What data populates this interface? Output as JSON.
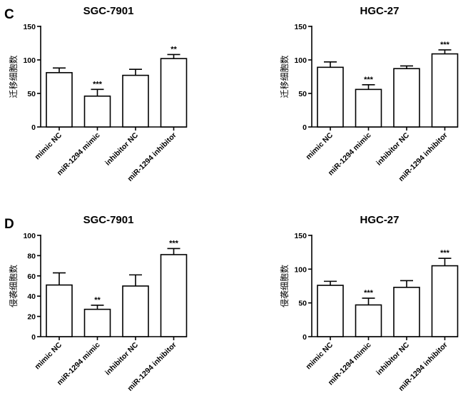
{
  "panels": [
    "C",
    "D"
  ],
  "chart_data": [
    {
      "type": "bar",
      "panel": "C",
      "title": "SGC-7901",
      "ylabel": "迁移细胞数",
      "ylim": [
        0,
        150
      ],
      "yticks": [
        "0",
        "50",
        "100",
        "150"
      ],
      "categories": [
        "mimic NC",
        "miR-1294 mimic",
        "inhibitor NC",
        "miR-1294 inhibitor"
      ],
      "values": [
        81,
        46,
        77,
        102
      ],
      "errors": [
        7,
        10,
        9,
        6
      ],
      "significance": [
        "",
        "***",
        "",
        "**"
      ]
    },
    {
      "type": "bar",
      "panel": "C",
      "title": "HGC-27",
      "ylabel": "迁移细胞数",
      "ylim": [
        0,
        150
      ],
      "yticks": [
        "0",
        "50",
        "100",
        "150"
      ],
      "categories": [
        "mimic NC",
        "miR-1294 mimic",
        "inhibitor NC",
        "miR-1294 inhibitor"
      ],
      "values": [
        89,
        56,
        87,
        109
      ],
      "errors": [
        8,
        7,
        4,
        6
      ],
      "significance": [
        "",
        "***",
        "",
        "***"
      ]
    },
    {
      "type": "bar",
      "panel": "D",
      "title": "SGC-7901",
      "ylabel": "侵袭细胞数",
      "ylim": [
        0,
        100
      ],
      "yticks": [
        "0",
        "20",
        "40",
        "60",
        "80",
        "100"
      ],
      "categories": [
        "mimic NC",
        "miR-1294 mimic",
        "inhibitor NC",
        "miR-1294 inhibitor"
      ],
      "values": [
        51,
        27,
        50,
        81
      ],
      "errors": [
        12,
        4,
        11,
        6
      ],
      "significance": [
        "",
        "**",
        "",
        "***"
      ]
    },
    {
      "type": "bar",
      "panel": "D",
      "title": "HGC-27",
      "ylabel": "侵袭细胞数",
      "ylim": [
        0,
        150
      ],
      "yticks": [
        "0",
        "50",
        "100",
        "150"
      ],
      "categories": [
        "mimic NC",
        "miR-1294 mimic",
        "inhibitor NC",
        "miR-1294 inhibitor"
      ],
      "values": [
        76,
        47,
        73,
        105
      ],
      "errors": [
        6,
        10,
        10,
        11
      ],
      "significance": [
        "",
        "***",
        "",
        "***"
      ]
    }
  ]
}
